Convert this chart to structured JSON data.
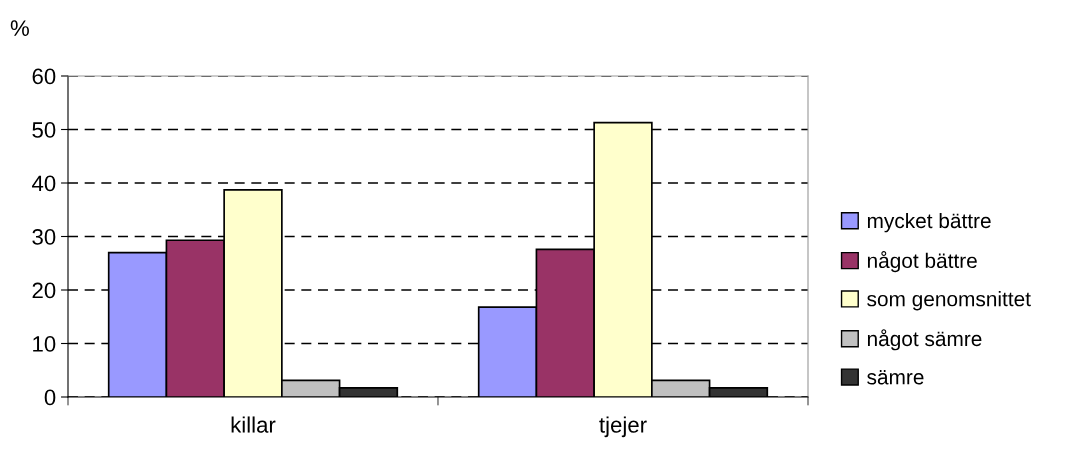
{
  "chart_data": {
    "type": "bar",
    "ylabel": "%",
    "categories": [
      "killar",
      "tjejer"
    ],
    "series": [
      {
        "name": "mycket bättre",
        "color": "#9999ff",
        "values": [
          27.0,
          16.8
        ]
      },
      {
        "name": "något bättre",
        "color": "#993366",
        "values": [
          29.3,
          27.6
        ]
      },
      {
        "name": "som genomsnittet",
        "color": "#ffffcc",
        "values": [
          38.7,
          51.3
        ]
      },
      {
        "name": "något sämre",
        "color": "#c0c0c0",
        "values": [
          3.1,
          3.1
        ]
      },
      {
        "name": "sämre",
        "color": "#333333",
        "values": [
          1.7,
          1.7
        ]
      }
    ],
    "ylim": [
      0,
      60
    ],
    "yticks": [
      0,
      10,
      20,
      30,
      40,
      50,
      60
    ],
    "grid": "y",
    "line_style": "dashed",
    "legend": "right"
  }
}
